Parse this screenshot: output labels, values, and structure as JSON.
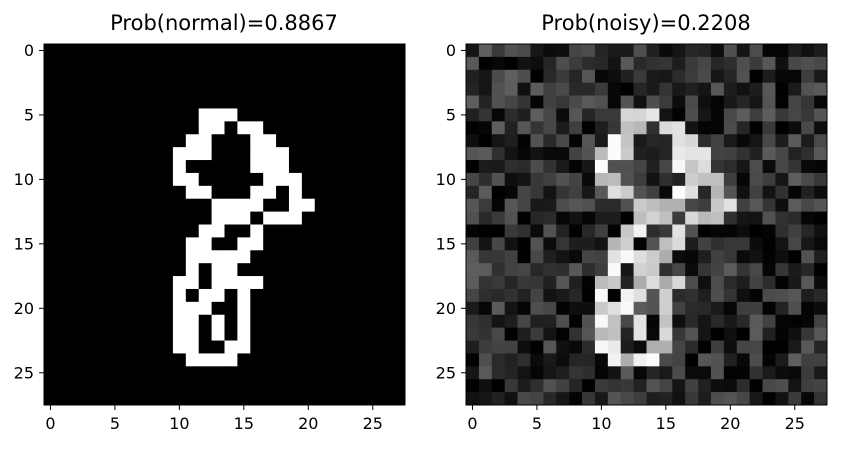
{
  "panels": [
    {
      "title": "Prob(normal)=0.8867",
      "image": "binary 28x28 handwritten digit 8, white strokes on black background",
      "x_ticks": [
        "0",
        "5",
        "10",
        "15",
        "20",
        "25"
      ],
      "y_ticks": [
        "0",
        "5",
        "10",
        "15",
        "20",
        "25"
      ]
    },
    {
      "title": "Prob(noisy)=0.2208",
      "image": "same 28x28 digit 8 in grayscale with random gray pixel noise",
      "x_ticks": [
        "0",
        "5",
        "10",
        "15",
        "20",
        "25"
      ],
      "y_ticks": [
        "0",
        "5",
        "10",
        "15",
        "20",
        "25"
      ]
    }
  ],
  "colors": {
    "background": "#000000",
    "stroke": "#ffffff",
    "axis": "#000000"
  }
}
